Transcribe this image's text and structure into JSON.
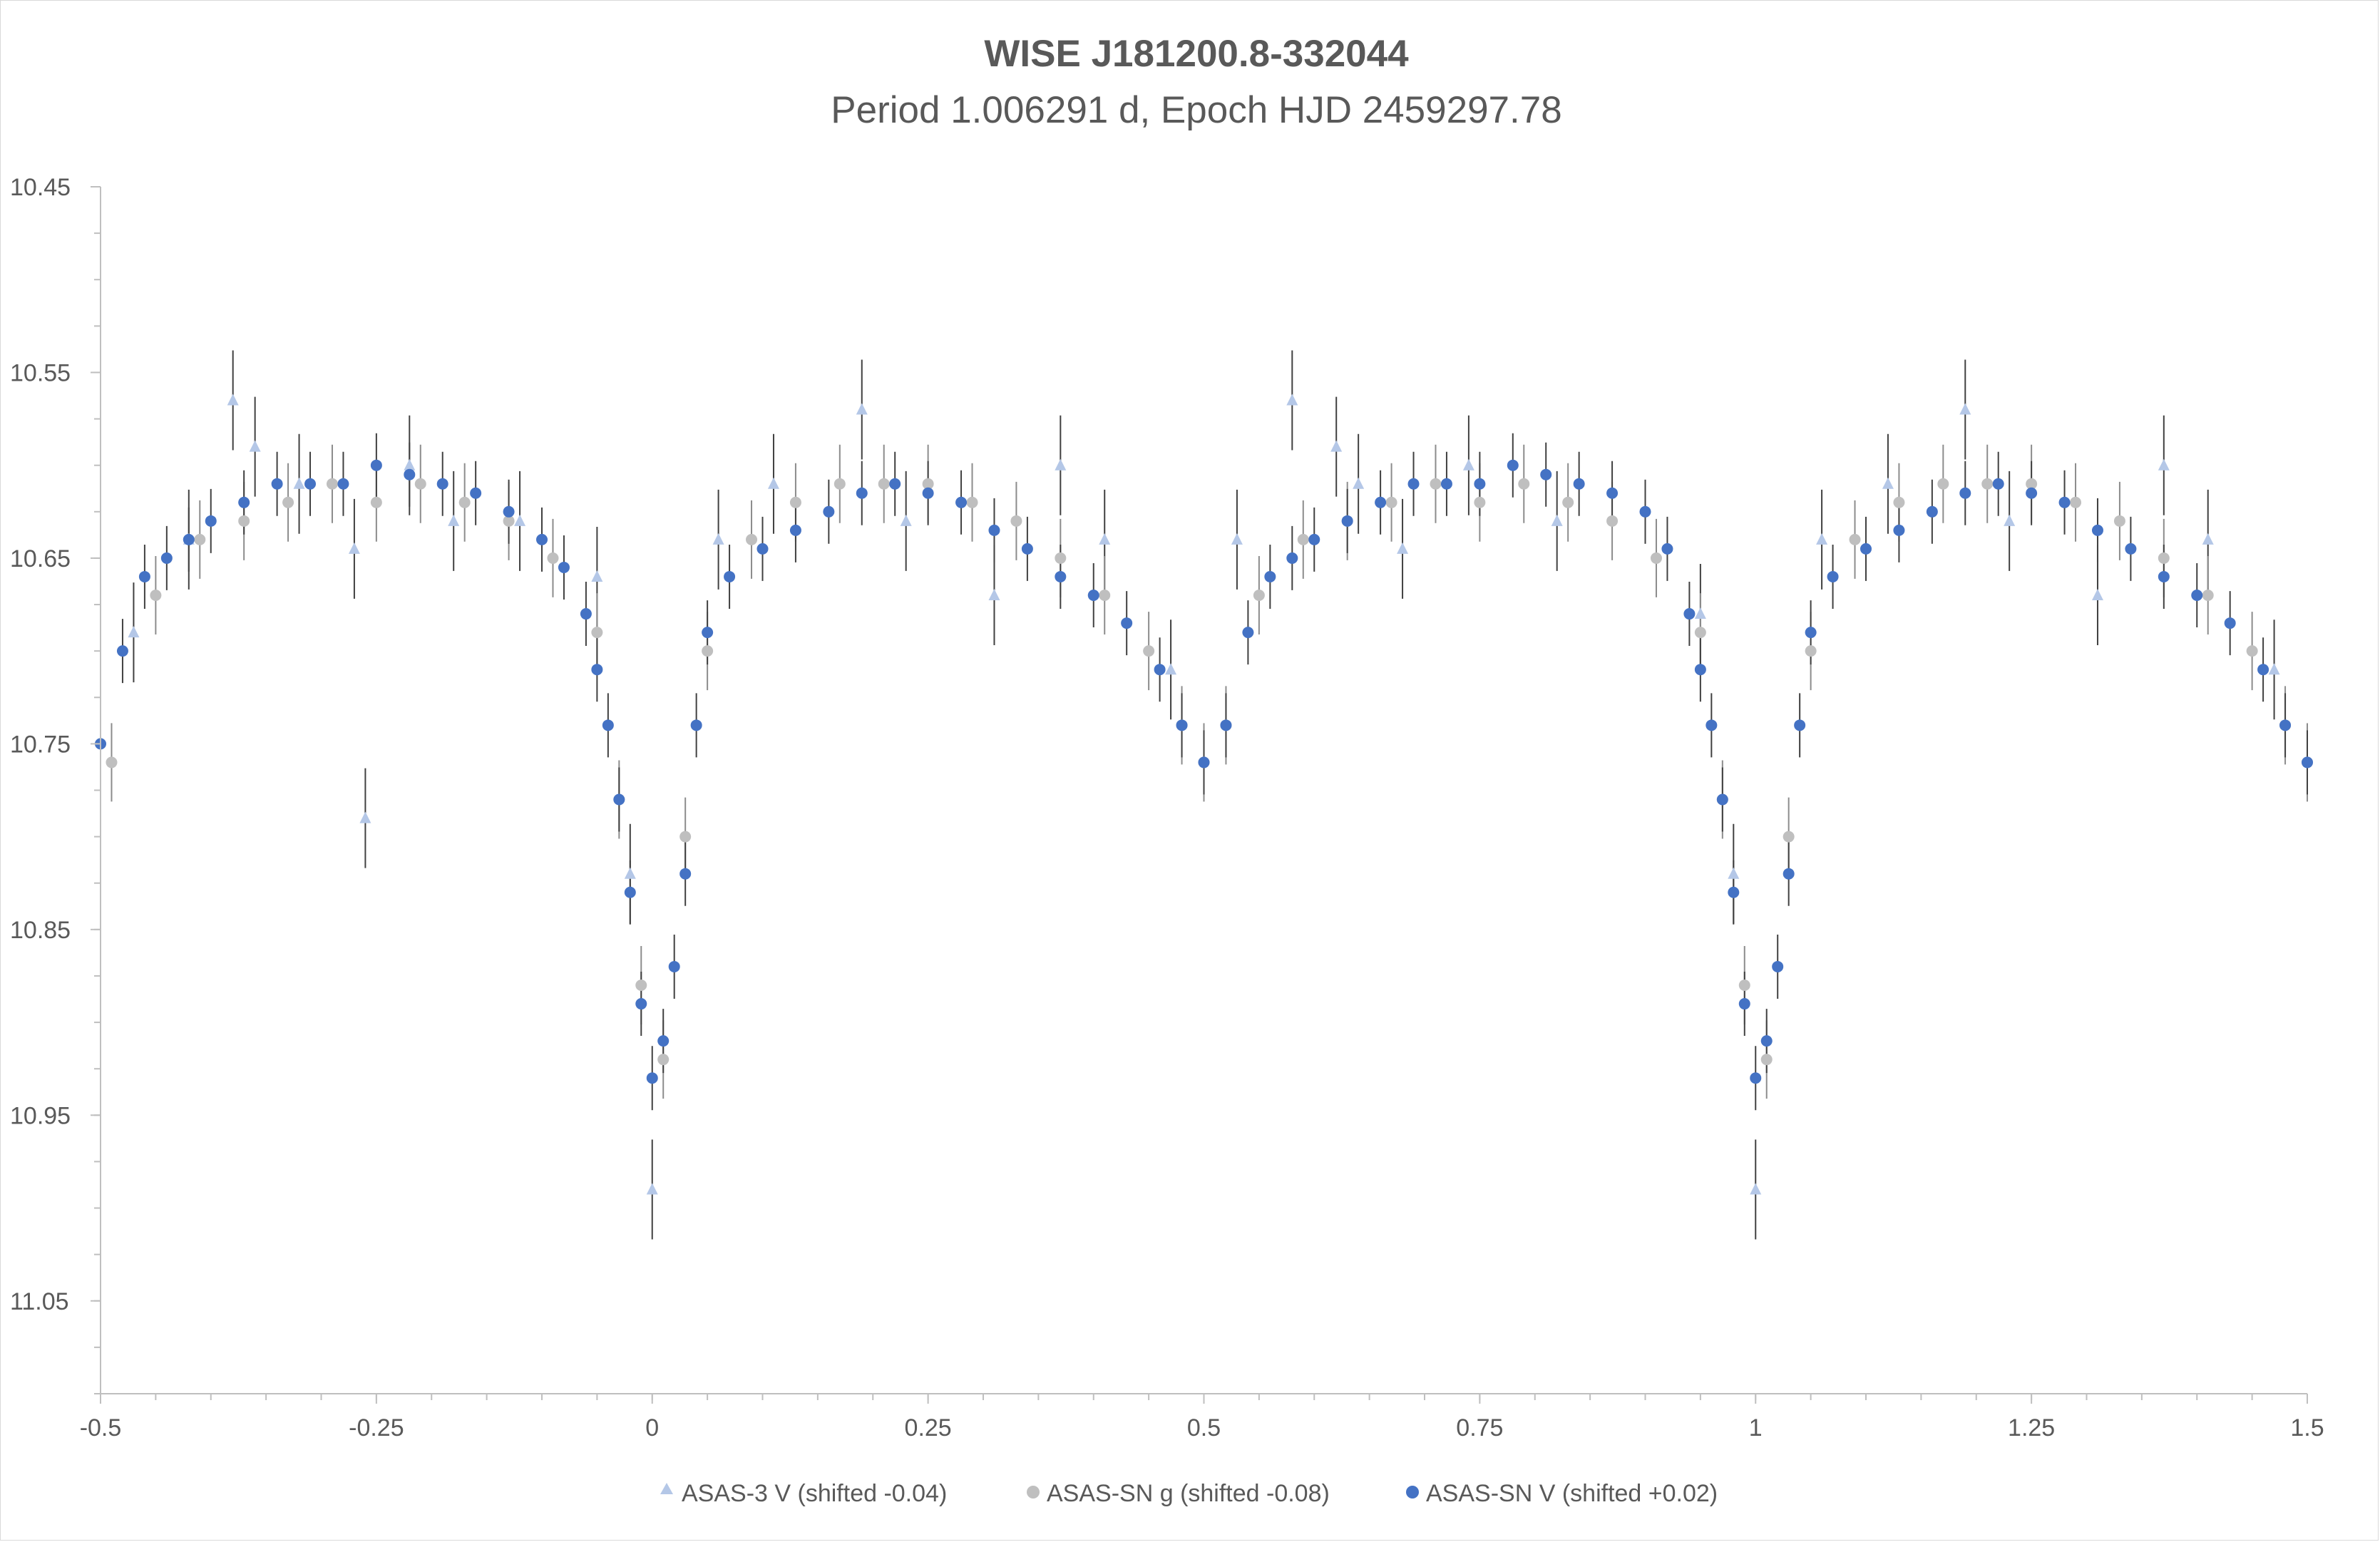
{
  "chart_data": {
    "type": "scatter",
    "title": "WISE J181200.8-332044",
    "subtitle": "Period 1.006291 d, Epoch HJD 2459297.78",
    "xlabel": "",
    "ylabel": "",
    "xlim": [
      -0.5,
      1.5
    ],
    "ylim": [
      10.45,
      11.1
    ],
    "y_reversed": true,
    "x_ticks": [
      "-0.5",
      "-0.25",
      "0",
      "0.25",
      "0.5",
      "0.75",
      "1",
      "1.25",
      "1.5"
    ],
    "y_ticks": [
      "10.45",
      "10.55",
      "10.65",
      "10.75",
      "10.85",
      "10.95",
      "11.05"
    ],
    "grid": false,
    "legend_position": "bottom",
    "error_bars": true,
    "colors": {
      "asas3": "#b4c7e7",
      "asassn_g": "#bfbfbf",
      "asassn_v": "#4472c4",
      "errorbar": "#404040"
    },
    "series": [
      {
        "name": "ASAS-3 V (shifted -0.04)",
        "marker": "triangle",
        "x": [
          -0.47,
          -0.42,
          -0.38,
          -0.36,
          -0.32,
          -0.27,
          -0.26,
          -0.22,
          -0.18,
          -0.12,
          -0.05,
          -0.02,
          0.0,
          0.06,
          0.11,
          0.19,
          0.23,
          0.31,
          0.37,
          0.41,
          0.47,
          0.53,
          0.58,
          0.62,
          0.64,
          0.68,
          0.74,
          0.82,
          0.95,
          0.98,
          1.0,
          1.06,
          1.12,
          1.19,
          1.23,
          1.31,
          1.37,
          1.41,
          1.47
        ],
        "y": [
          10.69,
          10.64,
          10.565,
          10.59,
          10.61,
          10.645,
          10.79,
          10.6,
          10.63,
          10.63,
          10.66,
          10.82,
          10.99,
          10.64,
          10.61,
          10.57,
          10.63,
          10.67,
          10.6,
          10.64,
          10.71,
          10.64,
          10.565,
          10.59,
          10.61,
          10.645,
          10.6,
          10.63,
          10.68,
          10.82,
          10.99,
          10.64,
          10.61,
          10.57,
          10.63,
          10.67,
          10.6,
          10.64,
          10.71
        ]
      },
      {
        "name": "ASAS-SN g (shifted -0.08)",
        "marker": "circle",
        "x": [
          -0.49,
          -0.45,
          -0.41,
          -0.37,
          -0.33,
          -0.29,
          -0.25,
          -0.21,
          -0.17,
          -0.13,
          -0.09,
          -0.05,
          -0.03,
          -0.01,
          0.01,
          0.03,
          0.05,
          0.09,
          0.13,
          0.17,
          0.21,
          0.25,
          0.29,
          0.33,
          0.37,
          0.41,
          0.45,
          0.48,
          0.5,
          0.52,
          0.55,
          0.59,
          0.63,
          0.67,
          0.71,
          0.75,
          0.79,
          0.83,
          0.87,
          0.91,
          0.95,
          0.97,
          0.99,
          1.01,
          1.03,
          1.05,
          1.09,
          1.13,
          1.17,
          1.21,
          1.25,
          1.29,
          1.33,
          1.37,
          1.41,
          1.45,
          1.48,
          1.5
        ],
        "y": [
          10.76,
          10.67,
          10.64,
          10.63,
          10.62,
          10.61,
          10.62,
          10.61,
          10.62,
          10.63,
          10.65,
          10.69,
          10.78,
          10.88,
          10.92,
          10.8,
          10.7,
          10.64,
          10.62,
          10.61,
          10.61,
          10.61,
          10.62,
          10.63,
          10.65,
          10.67,
          10.7,
          10.74,
          10.76,
          10.74,
          10.67,
          10.64,
          10.63,
          10.62,
          10.61,
          10.62,
          10.61,
          10.62,
          10.63,
          10.65,
          10.69,
          10.78,
          10.88,
          10.92,
          10.8,
          10.7,
          10.64,
          10.62,
          10.61,
          10.61,
          10.61,
          10.62,
          10.63,
          10.65,
          10.67,
          10.7,
          10.74,
          10.76
        ]
      },
      {
        "name": "ASAS-SN V (shifted +0.02)",
        "marker": "circle",
        "x": [
          -0.5,
          -0.48,
          -0.46,
          -0.44,
          -0.42,
          -0.4,
          -0.37,
          -0.34,
          -0.31,
          -0.28,
          -0.25,
          -0.22,
          -0.19,
          -0.16,
          -0.13,
          -0.1,
          -0.08,
          -0.06,
          -0.05,
          -0.04,
          -0.03,
          -0.02,
          -0.01,
          0.0,
          0.01,
          0.02,
          0.03,
          0.04,
          0.05,
          0.07,
          0.1,
          0.13,
          0.16,
          0.19,
          0.22,
          0.25,
          0.28,
          0.31,
          0.34,
          0.37,
          0.4,
          0.43,
          0.46,
          0.48,
          0.5,
          0.52,
          0.54,
          0.56,
          0.58,
          0.6,
          0.63,
          0.66,
          0.69,
          0.72,
          0.75,
          0.78,
          0.81,
          0.84,
          0.87,
          0.9,
          0.92,
          0.94,
          0.95,
          0.96,
          0.97,
          0.98,
          0.99,
          1.0,
          1.01,
          1.02,
          1.03,
          1.04,
          1.05,
          1.07,
          1.1,
          1.13,
          1.16,
          1.19,
          1.22,
          1.25,
          1.28,
          1.31,
          1.34,
          1.37,
          1.4,
          1.43,
          1.46,
          1.48,
          1.5
        ],
        "y": [
          10.75,
          10.7,
          10.66,
          10.65,
          10.64,
          10.63,
          10.62,
          10.61,
          10.61,
          10.61,
          10.6,
          10.605,
          10.61,
          10.615,
          10.625,
          10.64,
          10.655,
          10.68,
          10.71,
          10.74,
          10.78,
          10.83,
          10.89,
          10.93,
          10.91,
          10.87,
          10.82,
          10.74,
          10.69,
          10.66,
          10.645,
          10.635,
          10.625,
          10.615,
          10.61,
          10.615,
          10.62,
          10.635,
          10.645,
          10.66,
          10.67,
          10.685,
          10.71,
          10.74,
          10.76,
          10.74,
          10.69,
          10.66,
          10.65,
          10.64,
          10.63,
          10.62,
          10.61,
          10.61,
          10.61,
          10.6,
          10.605,
          10.61,
          10.615,
          10.625,
          10.645,
          10.68,
          10.71,
          10.74,
          10.78,
          10.83,
          10.89,
          10.93,
          10.91,
          10.87,
          10.82,
          10.74,
          10.69,
          10.66,
          10.645,
          10.635,
          10.625,
          10.615,
          10.61,
          10.615,
          10.62,
          10.635,
          10.645,
          10.66,
          10.67,
          10.685,
          10.71,
          10.74,
          10.76
        ]
      }
    ]
  }
}
